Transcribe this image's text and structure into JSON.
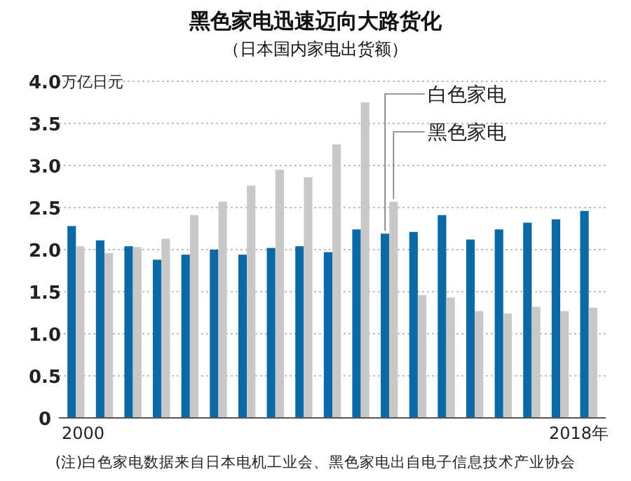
{
  "chart_data": {
    "type": "bar",
    "title": "黑色家电迅速迈向大路货化",
    "subtitle": "（日本国内家电出货额）",
    "ylabel": "万亿日元",
    "categories": [
      "2000",
      null,
      null,
      null,
      null,
      null,
      null,
      null,
      null,
      null,
      null,
      null,
      null,
      null,
      null,
      null,
      null,
      null,
      "2018年"
    ],
    "series": [
      {
        "name": "白色家电",
        "color": "#0b6aa6",
        "values": [
          2.28,
          2.11,
          2.04,
          1.88,
          1.94,
          2.0,
          1.94,
          2.02,
          2.04,
          1.97,
          2.24,
          2.19,
          2.21,
          2.41,
          2.12,
          2.24,
          2.32,
          2.36,
          2.46
        ]
      },
      {
        "name": "黑色家电",
        "color": "#c8c8c8",
        "values": [
          2.04,
          1.96,
          2.03,
          2.13,
          2.41,
          2.57,
          2.76,
          2.95,
          2.86,
          3.25,
          3.75,
          2.57,
          1.46,
          1.43,
          1.27,
          1.24,
          1.32,
          1.27,
          1.31
        ]
      }
    ],
    "ylim": [
      0,
      4.0
    ],
    "yticks": [
      {
        "value": 0,
        "label": "0"
      },
      {
        "value": 0.5,
        "label": "0.5"
      },
      {
        "value": 1,
        "label": "1.0"
      },
      {
        "value": 1.5,
        "label": "1.5"
      },
      {
        "value": 2,
        "label": "2.0"
      },
      {
        "value": 2.5,
        "label": "2.5"
      },
      {
        "value": 3,
        "label": "3.0"
      },
      {
        "value": 3.5,
        "label": "3.5"
      },
      {
        "value": 4,
        "label": "4.0"
      }
    ],
    "grid": "y",
    "annotations": [
      "(注)白色家电数据来自日本电机工业会、黑色家电出自电子信息技术产业协会"
    ]
  }
}
